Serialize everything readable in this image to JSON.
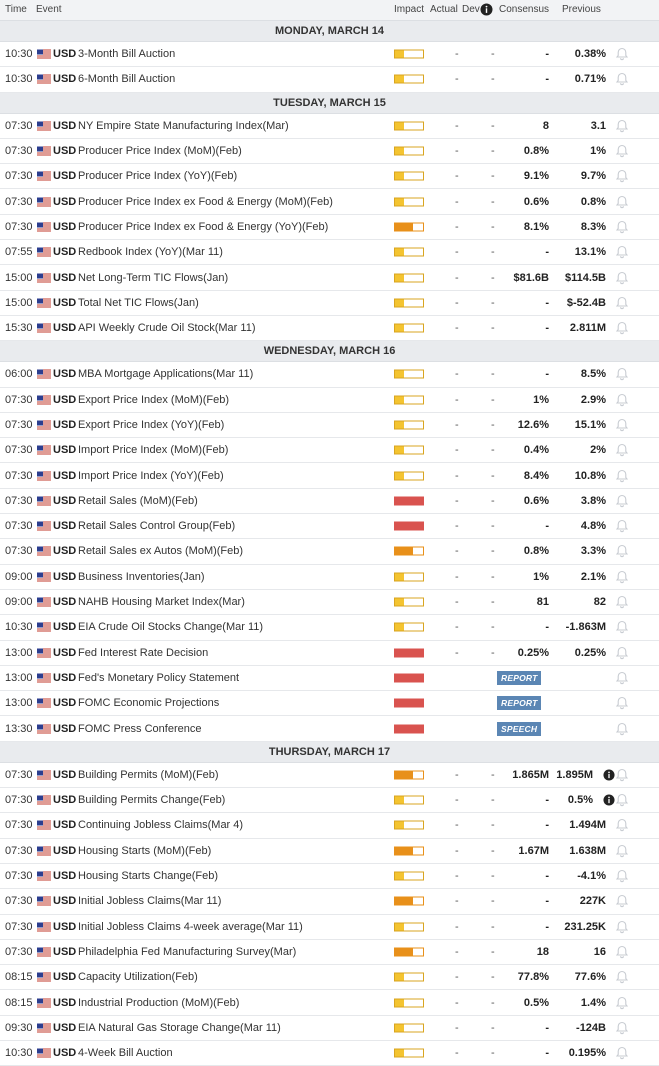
{
  "columns": {
    "time": "Time",
    "event": "Event",
    "impact": "Impact",
    "actual": "Actual",
    "dev": "Dev",
    "consensus": "Consensus",
    "previous": "Previous"
  },
  "colors": {
    "medium": "#f4c430",
    "mediumHigh": "#e8901a",
    "high": "#d9534f"
  },
  "days": [
    {
      "label": "MONDAY, MARCH 14",
      "rows": [
        {
          "time": "10:30",
          "cur": "USD",
          "event": "3-Month Bill Auction",
          "impact": "low",
          "actual": "-",
          "dev": "-",
          "cons": "-",
          "prev": "0.38%"
        },
        {
          "time": "10:30",
          "cur": "USD",
          "event": "6-Month Bill Auction",
          "impact": "low",
          "actual": "-",
          "dev": "-",
          "cons": "-",
          "prev": "0.71%"
        }
      ]
    },
    {
      "label": "TUESDAY, MARCH 15",
      "rows": [
        {
          "time": "07:30",
          "cur": "USD",
          "event": "NY Empire State Manufacturing Index(Mar)",
          "impact": "low",
          "actual": "-",
          "dev": "-",
          "cons": "8",
          "prev": "3.1"
        },
        {
          "time": "07:30",
          "cur": "USD",
          "event": "Producer Price Index (MoM)(Feb)",
          "impact": "low",
          "actual": "-",
          "dev": "-",
          "cons": "0.8%",
          "prev": "1%"
        },
        {
          "time": "07:30",
          "cur": "USD",
          "event": "Producer Price Index (YoY)(Feb)",
          "impact": "low",
          "actual": "-",
          "dev": "-",
          "cons": "9.1%",
          "prev": "9.7%"
        },
        {
          "time": "07:30",
          "cur": "USD",
          "event": "Producer Price Index ex Food & Energy (MoM)(Feb)",
          "impact": "low",
          "actual": "-",
          "dev": "-",
          "cons": "0.6%",
          "prev": "0.8%"
        },
        {
          "time": "07:30",
          "cur": "USD",
          "event": "Producer Price Index ex Food & Energy (YoY)(Feb)",
          "impact": "medhigh",
          "actual": "-",
          "dev": "-",
          "cons": "8.1%",
          "prev": "8.3%"
        },
        {
          "time": "07:55",
          "cur": "USD",
          "event": "Redbook Index (YoY)(Mar 11)",
          "impact": "low",
          "actual": "-",
          "dev": "-",
          "cons": "-",
          "prev": "13.1%"
        },
        {
          "time": "15:00",
          "cur": "USD",
          "event": "Net Long-Term TIC Flows(Jan)",
          "impact": "low",
          "actual": "-",
          "dev": "-",
          "cons": "$81.6B",
          "prev": "$114.5B"
        },
        {
          "time": "15:00",
          "cur": "USD",
          "event": "Total Net TIC Flows(Jan)",
          "impact": "low",
          "actual": "-",
          "dev": "-",
          "cons": "-",
          "prev": "$-52.4B"
        },
        {
          "time": "15:30",
          "cur": "USD",
          "event": "API Weekly Crude Oil Stock(Mar 11)",
          "impact": "low",
          "actual": "-",
          "dev": "-",
          "cons": "-",
          "prev": "2.811M"
        }
      ]
    },
    {
      "label": "WEDNESDAY, MARCH 16",
      "rows": [
        {
          "time": "06:00",
          "cur": "USD",
          "event": "MBA Mortgage Applications(Mar 11)",
          "impact": "low",
          "actual": "-",
          "dev": "-",
          "cons": "-",
          "prev": "8.5%"
        },
        {
          "time": "07:30",
          "cur": "USD",
          "event": "Export Price Index (MoM)(Feb)",
          "impact": "low",
          "actual": "-",
          "dev": "-",
          "cons": "1%",
          "prev": "2.9%"
        },
        {
          "time": "07:30",
          "cur": "USD",
          "event": "Export Price Index (YoY)(Feb)",
          "impact": "low",
          "actual": "-",
          "dev": "-",
          "cons": "12.6%",
          "prev": "15.1%"
        },
        {
          "time": "07:30",
          "cur": "USD",
          "event": "Import Price Index (MoM)(Feb)",
          "impact": "low",
          "actual": "-",
          "dev": "-",
          "cons": "0.4%",
          "prev": "2%"
        },
        {
          "time": "07:30",
          "cur": "USD",
          "event": "Import Price Index (YoY)(Feb)",
          "impact": "low",
          "actual": "-",
          "dev": "-",
          "cons": "8.4%",
          "prev": "10.8%"
        },
        {
          "time": "07:30",
          "cur": "USD",
          "event": "Retail Sales (MoM)(Feb)",
          "impact": "high",
          "actual": "-",
          "dev": "-",
          "cons": "0.6%",
          "prev": "3.8%"
        },
        {
          "time": "07:30",
          "cur": "USD",
          "event": "Retail Sales Control Group(Feb)",
          "impact": "high",
          "actual": "-",
          "dev": "-",
          "cons": "-",
          "prev": "4.8%"
        },
        {
          "time": "07:30",
          "cur": "USD",
          "event": "Retail Sales ex Autos (MoM)(Feb)",
          "impact": "medhigh",
          "actual": "-",
          "dev": "-",
          "cons": "0.8%",
          "prev": "3.3%"
        },
        {
          "time": "09:00",
          "cur": "USD",
          "event": "Business Inventories(Jan)",
          "impact": "low",
          "actual": "-",
          "dev": "-",
          "cons": "1%",
          "prev": "2.1%"
        },
        {
          "time": "09:00",
          "cur": "USD",
          "event": "NAHB Housing Market Index(Mar)",
          "impact": "low",
          "actual": "-",
          "dev": "-",
          "cons": "81",
          "prev": "82"
        },
        {
          "time": "10:30",
          "cur": "USD",
          "event": "EIA Crude Oil Stocks Change(Mar 11)",
          "impact": "low",
          "actual": "-",
          "dev": "-",
          "cons": "-",
          "prev": "-1.863M"
        },
        {
          "time": "13:00",
          "cur": "USD",
          "event": "Fed Interest Rate Decision",
          "impact": "high",
          "actual": "-",
          "dev": "-",
          "cons": "0.25%",
          "prev": "0.25%"
        },
        {
          "time": "13:00",
          "cur": "USD",
          "event": "Fed's Monetary Policy Statement",
          "impact": "high",
          "tag": "REPORT"
        },
        {
          "time": "13:00",
          "cur": "USD",
          "event": "FOMC Economic Projections",
          "impact": "high",
          "tag": "REPORT"
        },
        {
          "time": "13:30",
          "cur": "USD",
          "event": "FOMC Press Conference",
          "impact": "high",
          "tag": "SPEECH"
        }
      ]
    },
    {
      "label": "THURSDAY, MARCH 17",
      "rows": [
        {
          "time": "07:30",
          "cur": "USD",
          "event": "Building Permits (MoM)(Feb)",
          "impact": "medhigh",
          "actual": "-",
          "dev": "-",
          "cons": "1.865M",
          "prev": "1.895M",
          "info": true
        },
        {
          "time": "07:30",
          "cur": "USD",
          "event": "Building Permits Change(Feb)",
          "impact": "low",
          "actual": "-",
          "dev": "-",
          "cons": "-",
          "prev": "0.5%",
          "info": true
        },
        {
          "time": "07:30",
          "cur": "USD",
          "event": "Continuing Jobless Claims(Mar 4)",
          "impact": "low",
          "actual": "-",
          "dev": "-",
          "cons": "-",
          "prev": "1.494M"
        },
        {
          "time": "07:30",
          "cur": "USD",
          "event": "Housing Starts (MoM)(Feb)",
          "impact": "medhigh",
          "actual": "-",
          "dev": "-",
          "cons": "1.67M",
          "prev": "1.638M"
        },
        {
          "time": "07:30",
          "cur": "USD",
          "event": "Housing Starts Change(Feb)",
          "impact": "low",
          "actual": "-",
          "dev": "-",
          "cons": "-",
          "prev": "-4.1%"
        },
        {
          "time": "07:30",
          "cur": "USD",
          "event": "Initial Jobless Claims(Mar 11)",
          "impact": "medhigh",
          "actual": "-",
          "dev": "-",
          "cons": "-",
          "prev": "227K"
        },
        {
          "time": "07:30",
          "cur": "USD",
          "event": "Initial Jobless Claims 4-week average(Mar 11)",
          "impact": "low",
          "actual": "-",
          "dev": "-",
          "cons": "-",
          "prev": "231.25K"
        },
        {
          "time": "07:30",
          "cur": "USD",
          "event": "Philadelphia Fed Manufacturing Survey(Mar)",
          "impact": "medhigh",
          "actual": "-",
          "dev": "-",
          "cons": "18",
          "prev": "16"
        },
        {
          "time": "08:15",
          "cur": "USD",
          "event": "Capacity Utilization(Feb)",
          "impact": "low",
          "actual": "-",
          "dev": "-",
          "cons": "77.8%",
          "prev": "77.6%"
        },
        {
          "time": "08:15",
          "cur": "USD",
          "event": "Industrial Production (MoM)(Feb)",
          "impact": "low",
          "actual": "-",
          "dev": "-",
          "cons": "0.5%",
          "prev": "1.4%"
        },
        {
          "time": "09:30",
          "cur": "USD",
          "event": "EIA Natural Gas Storage Change(Mar 11)",
          "impact": "low",
          "actual": "-",
          "dev": "-",
          "cons": "-",
          "prev": "-124B"
        },
        {
          "time": "10:30",
          "cur": "USD",
          "event": "4-Week Bill Auction",
          "impact": "low",
          "actual": "-",
          "dev": "-",
          "cons": "-",
          "prev": "0.195%"
        }
      ]
    }
  ]
}
